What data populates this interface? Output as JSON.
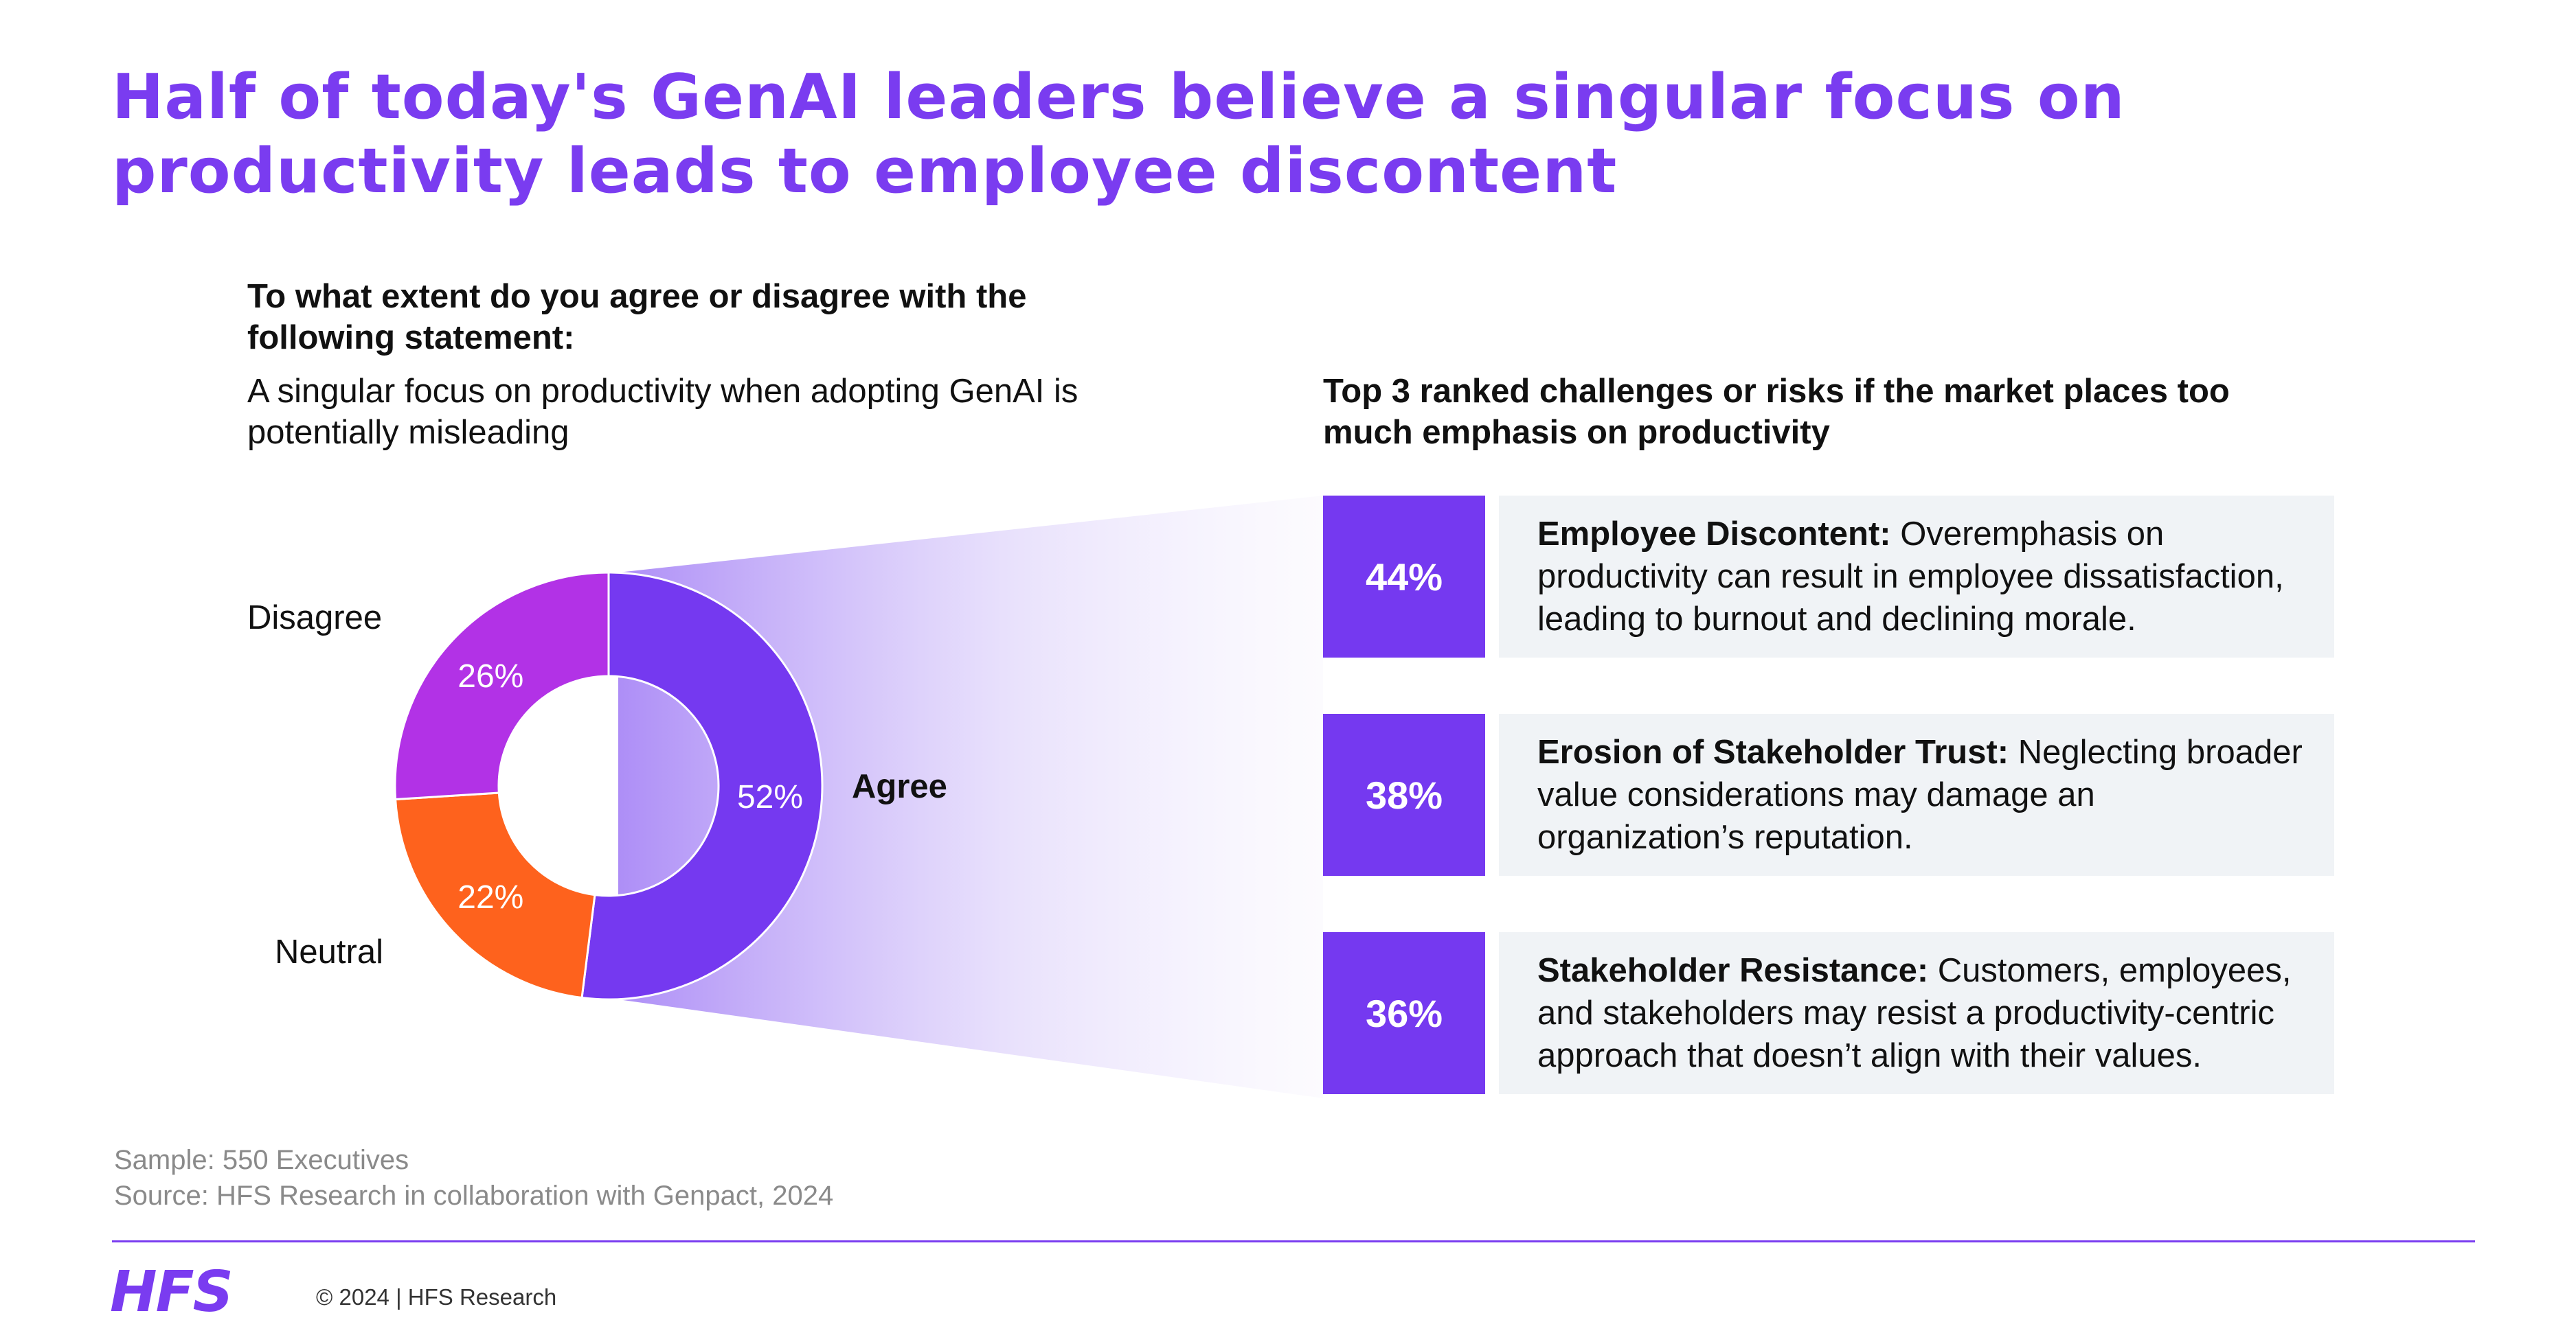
{
  "title": "Half of today's GenAI leaders believe a singular focus on productivity leads to employee discontent",
  "survey": {
    "question": "To what extent do you agree or disagree with the following statement:",
    "statement": "A singular focus on productivity when adopting GenAI is potentially misleading"
  },
  "chart_data": {
    "type": "pie",
    "variant": "donut",
    "categories": [
      "Agree",
      "Neutral",
      "Disagree"
    ],
    "values": [
      52,
      22,
      26
    ],
    "value_labels": [
      "52%",
      "22%",
      "26%"
    ],
    "colors": [
      "#7539f0",
      "#fe621d",
      "#b232e6"
    ],
    "legend": "labels beside slices"
  },
  "challenges": {
    "heading": "Top 3 ranked challenges or risks if the market places too much emphasis on productivity",
    "items": [
      {
        "pct": "44%",
        "title": "Employee Discontent:",
        "text": "Overemphasis on productivity can result in employee dissatisfaction, leading to burnout and declining morale."
      },
      {
        "pct": "38%",
        "title": "Erosion of Stakeholder Trust:",
        "text": "Neglecting broader value considerations may damage an organization’s reputation."
      },
      {
        "pct": "36%",
        "title": "Stakeholder Resistance:",
        "text": "Customers, employees, and stakeholders may resist a productivity-centric approach that doesn’t align with their values."
      }
    ]
  },
  "footer": {
    "sample": "Sample: 550 Executives",
    "source": "Source: HFS Research in collaboration with Genpact, 2024",
    "logo": "HFS",
    "copyright": "© 2024 | HFS Research"
  },
  "colors": {
    "brand": "#7a3cf0",
    "box_bg": "#f0f3f6"
  }
}
